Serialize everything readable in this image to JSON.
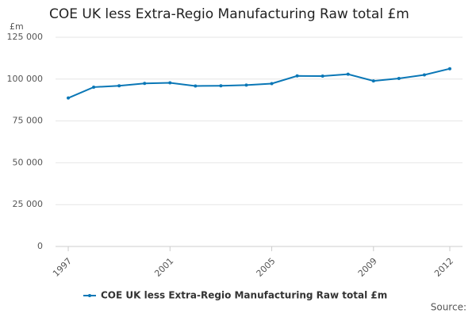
{
  "chart_data": {
    "type": "line",
    "title": "COE UK less Extra-Regio Manufacturing Raw total £m",
    "y_unit": "£m",
    "source": "Source:",
    "x": [
      1997,
      1998,
      1999,
      2000,
      2001,
      2002,
      2003,
      2004,
      2005,
      2006,
      2007,
      2008,
      2009,
      2010,
      2011,
      2012
    ],
    "series": [
      {
        "name": "COE UK less Extra-Regio Manufacturing Raw total £m",
        "color": "#0a77b6",
        "values": [
          88700,
          95200,
          96000,
          97400,
          97800,
          95900,
          96000,
          96400,
          97300,
          101900,
          101800,
          102900,
          98900,
          100400,
          102500,
          106200
        ]
      }
    ],
    "xlim": [
      1996.5,
      2012.5
    ],
    "xticks": [
      1997,
      2001,
      2005,
      2009,
      2012
    ],
    "ylim": [
      0,
      125000
    ],
    "yticks": [
      0,
      {
        "value": 25000,
        "label": "25 000"
      },
      {
        "value": 50000,
        "label": "50 000"
      },
      {
        "value": 75000,
        "label": "75 000"
      },
      {
        "value": 100000,
        "label": "100 000"
      },
      {
        "value": 125000,
        "label": "125 000"
      }
    ],
    "grid": true
  }
}
